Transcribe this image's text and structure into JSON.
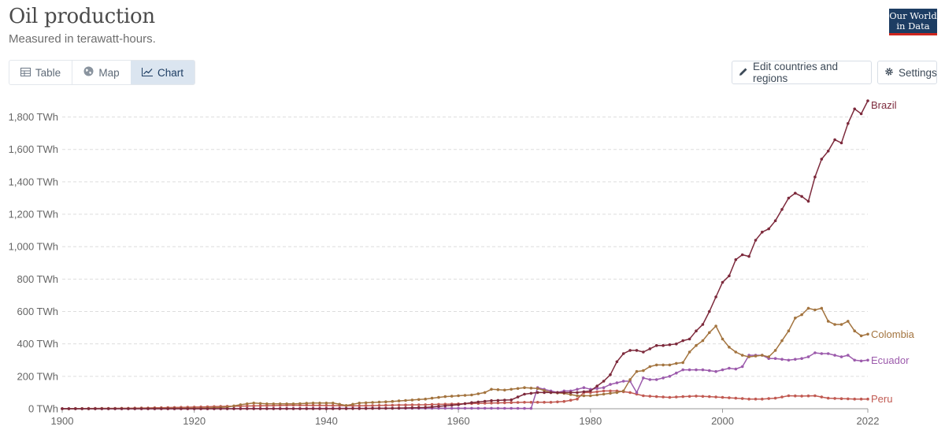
{
  "header": {
    "title": "Oil production",
    "subtitle": "Measured in terawatt-hours.",
    "logo_line1": "Our World",
    "logo_line2": "in Data"
  },
  "tabs": [
    {
      "label": "Table",
      "icon": "table-icon",
      "active": false
    },
    {
      "label": "Map",
      "icon": "globe-icon",
      "active": false
    },
    {
      "label": "Chart",
      "icon": "line-chart-icon",
      "active": true
    }
  ],
  "controls": {
    "edit_label": "Edit countries and regions",
    "settings_label": "Settings"
  },
  "colors": {
    "Brazil": "#7d2a3c",
    "Colombia": "#a3743f",
    "Ecuador": "#9c5bac",
    "Peru": "#c15a52",
    "grid": "#dddddd",
    "logo_bg": "#1d3d63",
    "logo_accent": "#ce261e"
  },
  "chart_data": {
    "type": "line",
    "xlim": [
      1900,
      2022
    ],
    "ylim": [
      0,
      1900
    ],
    "x_ticks": [
      1900,
      1920,
      1940,
      1960,
      1980,
      2000,
      2022
    ],
    "y_ticks": [
      0,
      200,
      400,
      600,
      800,
      1000,
      1200,
      1400,
      1600,
      1800
    ],
    "y_tick_labels": [
      "0 TWh",
      "200 TWh",
      "400 TWh",
      "600 TWh",
      "800 TWh",
      "1,000 TWh",
      "1,200 TWh",
      "1,400 TWh",
      "1,600 TWh",
      "1,800 TWh"
    ],
    "grid": "horizontal dashed",
    "legend": "inline labels at right end of lines",
    "series": [
      {
        "name": "Brazil",
        "points": [
          [
            1900,
            0
          ],
          [
            1930,
            0
          ],
          [
            1940,
            0
          ],
          [
            1945,
            1
          ],
          [
            1950,
            3
          ],
          [
            1955,
            8
          ],
          [
            1960,
            25
          ],
          [
            1962,
            38
          ],
          [
            1965,
            50
          ],
          [
            1968,
            55
          ],
          [
            1970,
            90
          ],
          [
            1972,
            100
          ],
          [
            1974,
            100
          ],
          [
            1976,
            100
          ],
          [
            1978,
            100
          ],
          [
            1980,
            110
          ],
          [
            1982,
            170
          ],
          [
            1983,
            210
          ],
          [
            1984,
            290
          ],
          [
            1985,
            340
          ],
          [
            1986,
            360
          ],
          [
            1987,
            360
          ],
          [
            1988,
            350
          ],
          [
            1989,
            370
          ],
          [
            1990,
            390
          ],
          [
            1991,
            390
          ],
          [
            1992,
            395
          ],
          [
            1993,
            400
          ],
          [
            1994,
            420
          ],
          [
            1995,
            430
          ],
          [
            1996,
            480
          ],
          [
            1997,
            520
          ],
          [
            1998,
            600
          ],
          [
            1999,
            690
          ],
          [
            2000,
            780
          ],
          [
            2001,
            820
          ],
          [
            2002,
            920
          ],
          [
            2003,
            950
          ],
          [
            2004,
            940
          ],
          [
            2005,
            1040
          ],
          [
            2006,
            1090
          ],
          [
            2007,
            1110
          ],
          [
            2008,
            1160
          ],
          [
            2009,
            1230
          ],
          [
            2010,
            1300
          ],
          [
            2011,
            1330
          ],
          [
            2012,
            1310
          ],
          [
            2013,
            1280
          ],
          [
            2014,
            1430
          ],
          [
            2015,
            1540
          ],
          [
            2016,
            1590
          ],
          [
            2017,
            1660
          ],
          [
            2018,
            1640
          ],
          [
            2019,
            1760
          ],
          [
            2020,
            1850
          ],
          [
            2021,
            1820
          ],
          [
            2022,
            1900
          ]
        ]
      },
      {
        "name": "Colombia",
        "points": [
          [
            1900,
            0
          ],
          [
            1921,
            3
          ],
          [
            1925,
            10
          ],
          [
            1927,
            25
          ],
          [
            1929,
            35
          ],
          [
            1931,
            30
          ],
          [
            1935,
            30
          ],
          [
            1938,
            35
          ],
          [
            1941,
            35
          ],
          [
            1943,
            20
          ],
          [
            1945,
            35
          ],
          [
            1950,
            45
          ],
          [
            1955,
            60
          ],
          [
            1958,
            75
          ],
          [
            1960,
            80
          ],
          [
            1962,
            85
          ],
          [
            1964,
            100
          ],
          [
            1965,
            120
          ],
          [
            1967,
            115
          ],
          [
            1969,
            125
          ],
          [
            1970,
            130
          ],
          [
            1972,
            125
          ],
          [
            1974,
            100
          ],
          [
            1976,
            95
          ],
          [
            1978,
            80
          ],
          [
            1980,
            80
          ],
          [
            1982,
            90
          ],
          [
            1984,
            100
          ],
          [
            1985,
            110
          ],
          [
            1986,
            180
          ],
          [
            1987,
            230
          ],
          [
            1988,
            235
          ],
          [
            1989,
            260
          ],
          [
            1990,
            270
          ],
          [
            1991,
            270
          ],
          [
            1992,
            270
          ],
          [
            1993,
            280
          ],
          [
            1994,
            285
          ],
          [
            1995,
            350
          ],
          [
            1996,
            390
          ],
          [
            1997,
            420
          ],
          [
            1998,
            470
          ],
          [
            1999,
            510
          ],
          [
            2000,
            430
          ],
          [
            2001,
            380
          ],
          [
            2002,
            350
          ],
          [
            2003,
            330
          ],
          [
            2004,
            320
          ],
          [
            2005,
            325
          ],
          [
            2006,
            330
          ],
          [
            2007,
            320
          ],
          [
            2008,
            360
          ],
          [
            2009,
            420
          ],
          [
            2010,
            480
          ],
          [
            2011,
            560
          ],
          [
            2012,
            580
          ],
          [
            2013,
            620
          ],
          [
            2014,
            610
          ],
          [
            2015,
            620
          ],
          [
            2016,
            540
          ],
          [
            2017,
            520
          ],
          [
            2018,
            520
          ],
          [
            2019,
            540
          ],
          [
            2020,
            480
          ],
          [
            2021,
            450
          ],
          [
            2022,
            460
          ]
        ]
      },
      {
        "name": "Ecuador",
        "points": [
          [
            1900,
            0
          ],
          [
            1920,
            0
          ],
          [
            1940,
            2
          ],
          [
            1950,
            3
          ],
          [
            1960,
            3
          ],
          [
            1965,
            3
          ],
          [
            1970,
            2
          ],
          [
            1971,
            2
          ],
          [
            1972,
            130
          ],
          [
            1973,
            120
          ],
          [
            1974,
            110
          ],
          [
            1975,
            100
          ],
          [
            1976,
            110
          ],
          [
            1977,
            110
          ],
          [
            1978,
            120
          ],
          [
            1979,
            130
          ],
          [
            1980,
            120
          ],
          [
            1981,
            125
          ],
          [
            1982,
            130
          ],
          [
            1983,
            150
          ],
          [
            1984,
            160
          ],
          [
            1985,
            170
          ],
          [
            1986,
            170
          ],
          [
            1987,
            100
          ],
          [
            1988,
            190
          ],
          [
            1989,
            180
          ],
          [
            1990,
            180
          ],
          [
            1991,
            190
          ],
          [
            1992,
            200
          ],
          [
            1993,
            220
          ],
          [
            1994,
            240
          ],
          [
            1995,
            240
          ],
          [
            1996,
            240
          ],
          [
            1997,
            240
          ],
          [
            1998,
            235
          ],
          [
            1999,
            230
          ],
          [
            2000,
            240
          ],
          [
            2001,
            250
          ],
          [
            2002,
            245
          ],
          [
            2003,
            260
          ],
          [
            2004,
            330
          ],
          [
            2005,
            330
          ],
          [
            2006,
            330
          ],
          [
            2007,
            310
          ],
          [
            2008,
            310
          ],
          [
            2009,
            305
          ],
          [
            2010,
            300
          ],
          [
            2011,
            305
          ],
          [
            2012,
            310
          ],
          [
            2013,
            320
          ],
          [
            2014,
            345
          ],
          [
            2015,
            340
          ],
          [
            2016,
            340
          ],
          [
            2017,
            330
          ],
          [
            2018,
            320
          ],
          [
            2019,
            330
          ],
          [
            2020,
            300
          ],
          [
            2021,
            295
          ],
          [
            2022,
            300
          ]
        ]
      },
      {
        "name": "Peru",
        "points": [
          [
            1900,
            1
          ],
          [
            1910,
            3
          ],
          [
            1920,
            10
          ],
          [
            1925,
            15
          ],
          [
            1930,
            18
          ],
          [
            1935,
            22
          ],
          [
            1940,
            20
          ],
          [
            1945,
            18
          ],
          [
            1950,
            22
          ],
          [
            1955,
            25
          ],
          [
            1960,
            30
          ],
          [
            1965,
            35
          ],
          [
            1970,
            40
          ],
          [
            1974,
            40
          ],
          [
            1976,
            45
          ],
          [
            1978,
            60
          ],
          [
            1979,
            100
          ],
          [
            1980,
            100
          ],
          [
            1982,
            110
          ],
          [
            1984,
            110
          ],
          [
            1986,
            100
          ],
          [
            1987,
            90
          ],
          [
            1988,
            80
          ],
          [
            1990,
            75
          ],
          [
            1992,
            70
          ],
          [
            1994,
            75
          ],
          [
            1996,
            78
          ],
          [
            1998,
            75
          ],
          [
            2000,
            70
          ],
          [
            2002,
            65
          ],
          [
            2004,
            60
          ],
          [
            2006,
            60
          ],
          [
            2008,
            65
          ],
          [
            2010,
            80
          ],
          [
            2012,
            78
          ],
          [
            2014,
            80
          ],
          [
            2016,
            65
          ],
          [
            2018,
            62
          ],
          [
            2020,
            60
          ],
          [
            2022,
            60
          ]
        ]
      }
    ]
  }
}
